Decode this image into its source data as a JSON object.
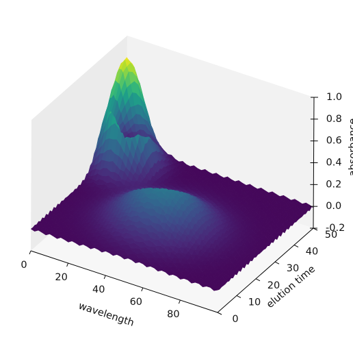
{
  "chart_data": {
    "type": "surface3d",
    "title": "",
    "xlabel": "wavelength",
    "ylabel": "elution time",
    "zlabel": "absorbance",
    "xlim": [
      0,
      100
    ],
    "ylim": [
      0,
      50
    ],
    "zlim": [
      -0.2,
      1.0
    ],
    "x_ticks": [
      0,
      20,
      40,
      60,
      80
    ],
    "y_ticks": [
      0,
      10,
      20,
      30,
      40,
      50
    ],
    "z_ticks": [
      "-0.2",
      "0.0",
      "0.2",
      "0.4",
      "0.6",
      "0.8",
      "1.0"
    ],
    "colormap": "viridis",
    "grid": false,
    "components": [
      {
        "wavelength_center": 10,
        "wavelength_width": 8,
        "elution_center": 40,
        "elution_width": 5,
        "amplitude": 1.0
      },
      {
        "wavelength_center": 50,
        "wavelength_width": 16,
        "elution_center": 20,
        "elution_width": 8,
        "amplitude": 0.4
      }
    ]
  }
}
